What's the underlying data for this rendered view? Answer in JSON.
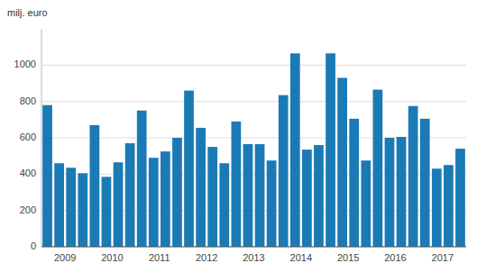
{
  "chart_data": {
    "type": "bar",
    "y_label": "milj. euro",
    "categories": [
      "2009",
      null,
      null,
      null,
      "2010",
      null,
      null,
      null,
      "2011",
      null,
      null,
      null,
      "2012",
      null,
      null,
      null,
      "2013",
      null,
      null,
      null,
      "2014",
      null,
      null,
      null,
      "2015",
      null,
      null,
      null,
      "2016",
      null,
      null,
      null,
      "2017",
      null,
      null,
      null
    ],
    "values": [
      780,
      460,
      435,
      405,
      670,
      385,
      465,
      570,
      750,
      490,
      525,
      600,
      860,
      655,
      550,
      460,
      690,
      565,
      565,
      475,
      835,
      1065,
      535,
      560,
      1065,
      930,
      705,
      475,
      865,
      600,
      605,
      775,
      705,
      430,
      450,
      540
    ],
    "color": "#1a7ab5",
    "ylim": [
      0,
      1200
    ],
    "yticks": [
      0,
      200,
      400,
      600,
      800,
      1000
    ],
    "grid": true
  }
}
